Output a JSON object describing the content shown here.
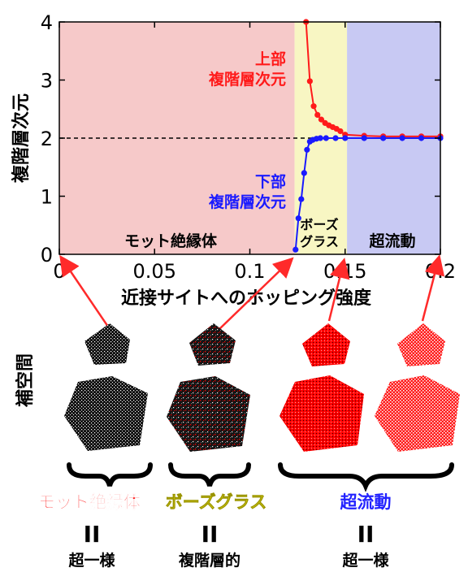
{
  "chart_data": {
    "type": "line",
    "xlabel": "近接サイトへのホッピング強度",
    "ylabel": "複階層次元",
    "xlim": [
      0,
      0.2
    ],
    "ylim": [
      0,
      4
    ],
    "x_ticks": [
      "0",
      "0.05",
      "0.1",
      "0.15",
      "0.2"
    ],
    "y_ticks": [
      "0",
      "1",
      "2",
      "3",
      "4"
    ],
    "reference_line_y": 2,
    "regions": [
      {
        "label": "モット絶縁体",
        "x_range": [
          0,
          0.1235
        ],
        "color": "#f6c9c9"
      },
      {
        "label_line1": "ボーズ",
        "label_line2": "グラス",
        "x_range": [
          0.1235,
          0.151
        ],
        "color": "#f8f6c3"
      },
      {
        "label": "超流動",
        "x_range": [
          0.151,
          0.2
        ],
        "color": "#c8c9f3"
      }
    ],
    "series": [
      {
        "name_line1": "上部",
        "name_line2": "複階層次元",
        "color": "#ff1a1a",
        "x": [
          0.1295,
          0.1315,
          0.1335,
          0.1355,
          0.1375,
          0.1395,
          0.1415,
          0.1435,
          0.1455,
          0.1475,
          0.15,
          0.16,
          0.17,
          0.18,
          0.19,
          0.2
        ],
        "y": [
          4.0,
          2.98,
          2.55,
          2.4,
          2.32,
          2.26,
          2.22,
          2.19,
          2.16,
          2.12,
          2.06,
          2.04,
          2.03,
          2.03,
          2.03,
          2.03
        ]
      },
      {
        "name_line1": "下部",
        "name_line2": "複階層次元",
        "color": "#1a1aff",
        "x": [
          0.124,
          0.1255,
          0.127,
          0.1285,
          0.13,
          0.1315,
          0.133,
          0.135,
          0.137,
          0.14,
          0.145,
          0.15,
          0.16,
          0.17,
          0.18,
          0.19,
          0.2
        ],
        "y": [
          0.08,
          0.62,
          0.95,
          1.4,
          1.8,
          1.94,
          1.97,
          1.99,
          2.0,
          2.0,
          2.0,
          2.0,
          2.0,
          2.0,
          2.0,
          2.0,
          2.0
        ]
      }
    ]
  },
  "bottom": {
    "side_label": "補空間",
    "groups": [
      {
        "label": "モット絶縁体",
        "color": "#ff1a1a",
        "equals": "II",
        "result": "超一様"
      },
      {
        "label": "ボーズグラス",
        "color": "#f2ea16",
        "equals": "II",
        "result": "複階層的"
      },
      {
        "label": "超流動",
        "color": "#2222ff",
        "equals": "II",
        "result": "超一様"
      }
    ],
    "pattern_colors": {
      "black": "#111111",
      "red": "#ff0000",
      "white": "#ffffff"
    }
  }
}
